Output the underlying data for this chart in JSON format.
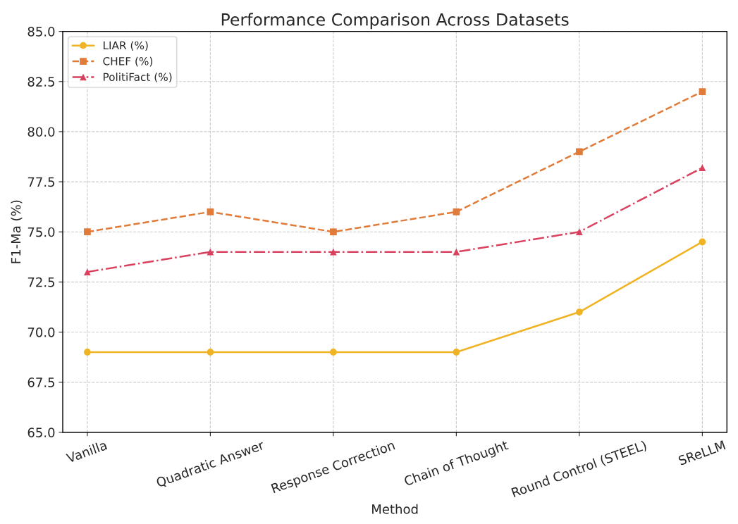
{
  "chart_data": {
    "type": "line",
    "title": "Performance Comparison Across Datasets",
    "xlabel": "Method",
    "ylabel": "F1-Ma (%)",
    "categories": [
      "Vanilla",
      "Quadratic Answer",
      "Response Correction",
      "Chain of Thought",
      "Round Control (STEEL)",
      "SReLLM"
    ],
    "series": [
      {
        "name": "LIAR (%)",
        "color": "#f0b323",
        "marker": "circle",
        "line_style": "solid",
        "values": [
          69,
          69,
          69,
          69,
          71,
          74.5
        ]
      },
      {
        "name": "CHEF (%)",
        "color": "#e07b39",
        "marker": "square",
        "line_style": "dashed",
        "values": [
          75,
          76,
          75,
          76,
          79,
          82
        ]
      },
      {
        "name": "PolitiFact (%)",
        "color": "#d9415e",
        "marker": "triangle",
        "line_style": "dashdot",
        "values": [
          73,
          74,
          74,
          74,
          75,
          78.2
        ]
      }
    ],
    "ylim": [
      65,
      85
    ],
    "yticks": [
      {
        "value": 65,
        "label": "65.0"
      },
      {
        "value": 67.5,
        "label": "67.5"
      },
      {
        "value": 70,
        "label": "70.0"
      },
      {
        "value": 72.5,
        "label": "72.5"
      },
      {
        "value": 75,
        "label": "75.0"
      },
      {
        "value": 77.5,
        "label": "77.5"
      },
      {
        "value": 80,
        "label": "80.0"
      },
      {
        "value": 82.5,
        "label": "82.5"
      },
      {
        "value": 85,
        "label": "85.0"
      }
    ],
    "grid": true,
    "legend": "top left"
  }
}
